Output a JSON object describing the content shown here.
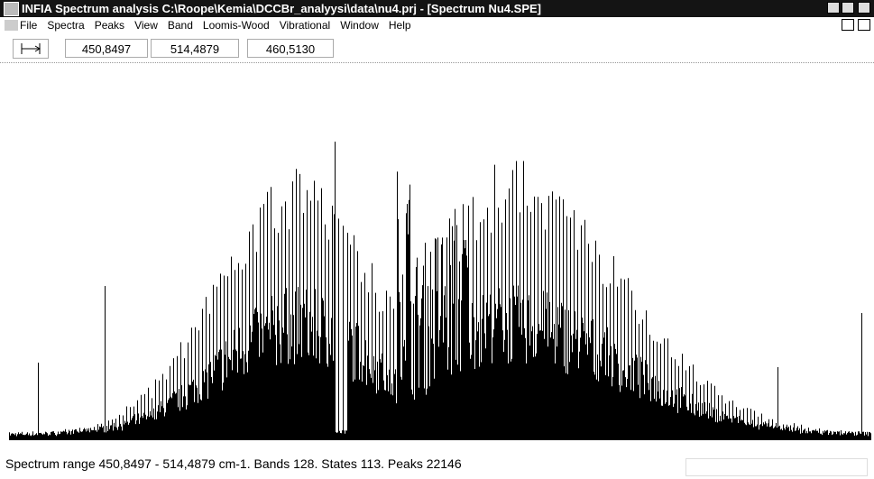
{
  "window": {
    "title": "INFIA Spectrum analysis C:\\Roope\\Kemia\\DCCBr_analyysi\\data\\nu4.prj - [Spectrum Nu4.SPE]"
  },
  "menu": [
    "File",
    "Spectra",
    "Peaks",
    "View",
    "Band",
    "Loomis-Wood",
    "Vibrational",
    "Window",
    "Help"
  ],
  "toolbar": {
    "fields": [
      "450,8497",
      "514,4879",
      "460,5130"
    ]
  },
  "status": {
    "text": "Spectrum range 450,8497 - 514,4879 cm-1. Bands 128. States 113. Peaks 22146"
  }
}
